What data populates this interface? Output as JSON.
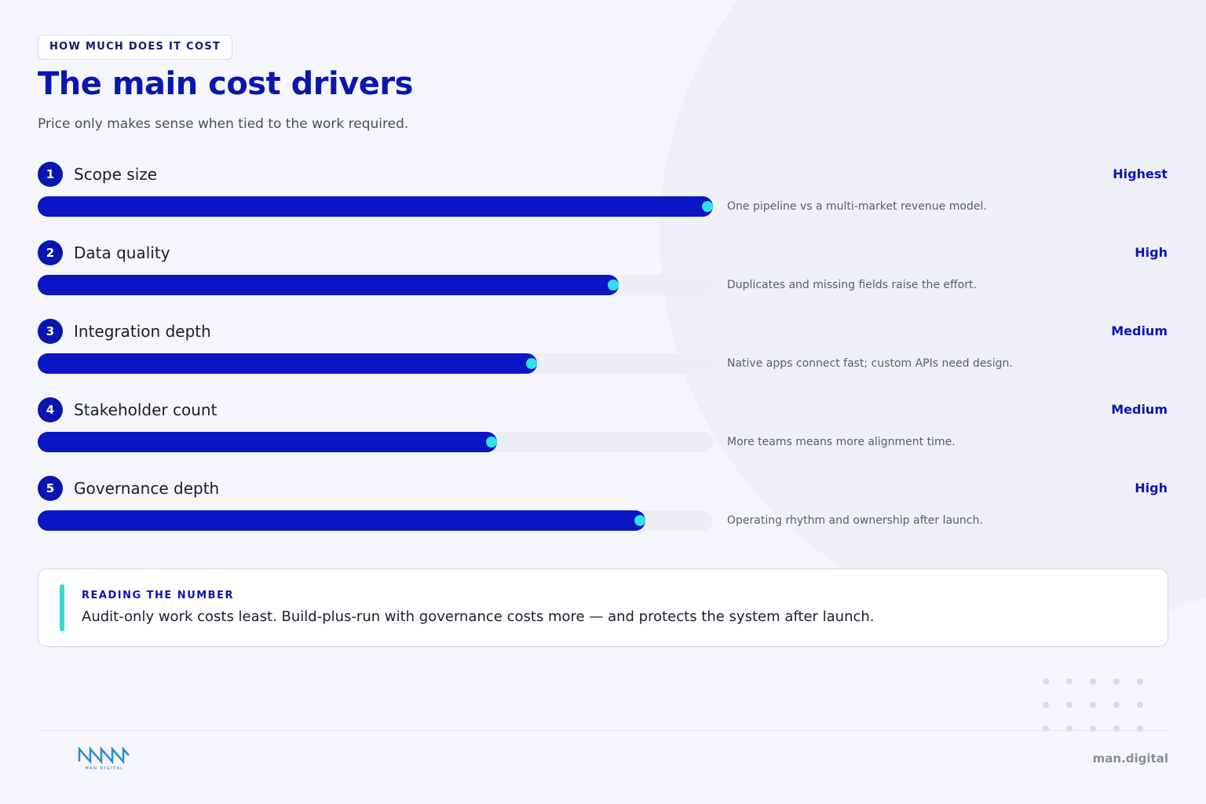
{
  "header": {
    "eyebrow": "HOW MUCH DOES IT COST",
    "title": "The main cost drivers",
    "subtitle": "Price only makes sense when tied to the work required."
  },
  "chart_data": {
    "type": "bar",
    "orientation": "horizontal",
    "ranks": [
      "1",
      "2",
      "3",
      "4",
      "5"
    ],
    "categories": [
      "Scope size",
      "Data quality",
      "Integration depth",
      "Stakeholder count",
      "Governance depth"
    ],
    "values": [
      100,
      86,
      74,
      68,
      90
    ],
    "levels": [
      "Highest",
      "High",
      "Medium",
      "Medium",
      "High"
    ],
    "notes": [
      "One pipeline vs a multi-market revenue model.",
      "Duplicates and missing fields raise the effort.",
      "Native apps connect fast; custom APIs need design.",
      "More teams means more alignment time.",
      "Operating rhythm and ownership after launch."
    ],
    "xlim": [
      0,
      100
    ],
    "color": "#0a16c4",
    "marker_color": "#2ee0ee"
  },
  "callout": {
    "label": "READING THE NUMBER",
    "text": "Audit-only work costs least. Build-plus-run with governance costs more — and protects the system after launch."
  },
  "footer": {
    "logo_text": "MAN DIGITAL",
    "site": "man.digital"
  }
}
